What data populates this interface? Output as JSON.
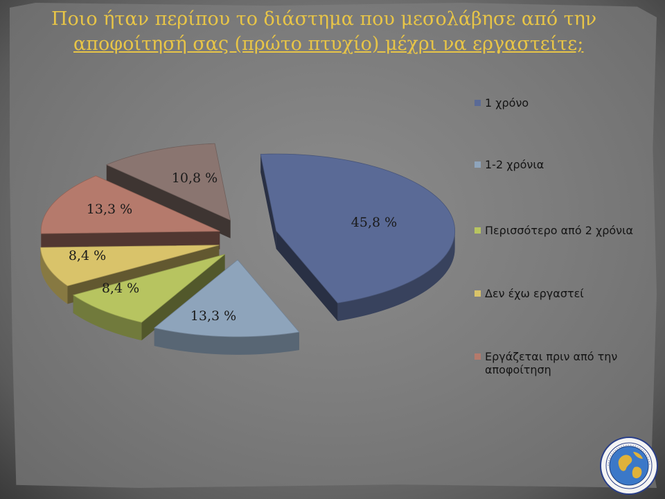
{
  "slide": {
    "title_line1": "Ποιο ήταν περίπου το διάστημα που μεσολάβησε από την",
    "title_line2": "αποφοίτησή σας (πρώτο πτυχίο) μέχρι να εργαστείτε;"
  },
  "chart_data": {
    "type": "pie",
    "title": "",
    "exploded": true,
    "three_d": true,
    "legend_position": "right",
    "series": [
      {
        "name": "1 χρόνο",
        "value": 45.8,
        "label": "45,8 %",
        "color": "#5a6a96",
        "legend_lines": [
          "1 χρόνο"
        ]
      },
      {
        "name": "1-2 χρόνια",
        "value": 13.3,
        "label": "13,3 %",
        "color": "#8ea4bb",
        "legend_lines": [
          "1-2 χρόνια"
        ]
      },
      {
        "name": "Περισσότερο από 2 χρόνια",
        "value": 8.4,
        "label": "8,4 %",
        "color": "#b7c460",
        "legend_lines": [
          "Περισσότερο από 2 χρόνια"
        ]
      },
      {
        "name": "Δεν έχω εργαστεί",
        "value": 8.4,
        "label": "8,4 %",
        "color": "#d9c36a",
        "legend_lines": [
          "Δεν έχω εργαστεί"
        ]
      },
      {
        "name": "Εργάζεται πριν από την αποφοίτηση",
        "value": 13.3,
        "label": "13,3 %",
        "color": "#b57a6c",
        "legend_lines": [
          "Εργάζεται πριν από την",
          "αποφοίτηση"
        ]
      },
      {
        "name": "",
        "value": 10.8,
        "label": "10,8 %",
        "color": "#8a7570",
        "legend_lines": []
      }
    ]
  },
  "badge": {
    "icon": "globe-seal-icon"
  }
}
